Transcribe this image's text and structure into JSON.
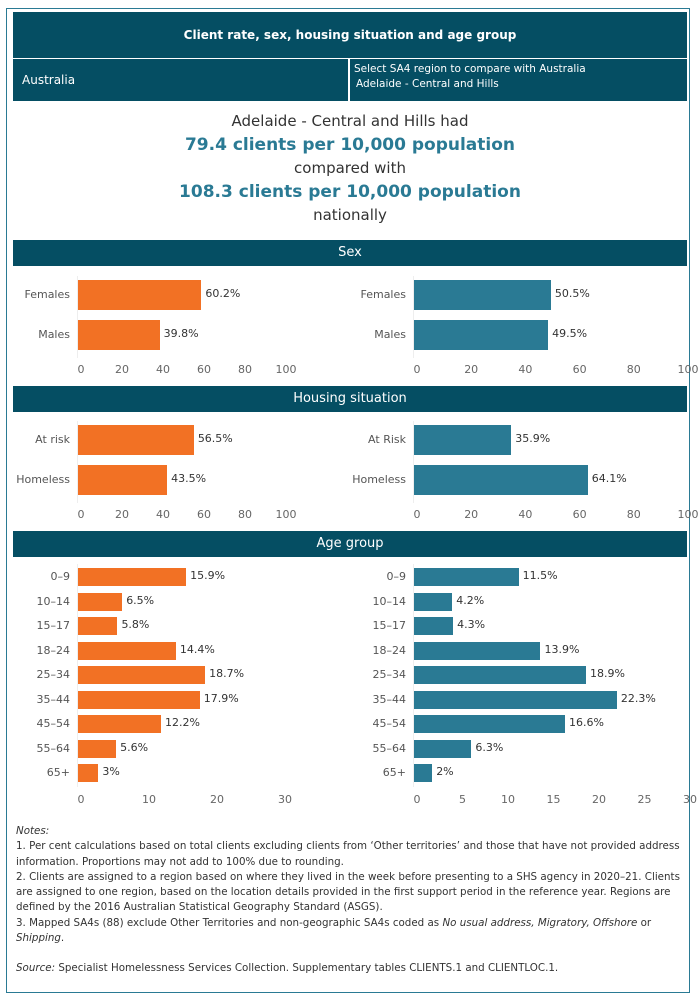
{
  "header": {
    "title": "Client rate, sex, housing situation and age group",
    "left_label": "Australia",
    "selector_label": "Select SA4 region to compare with Australia",
    "selected_region": "Adelaide - Central and Hills"
  },
  "summary": {
    "line1": "Adelaide - Central and Hills had",
    "line2": "79.4 clients per 10,000 population",
    "line3": "compared with",
    "line4": "108.3 clients per 10,000 population",
    "line5": "nationally"
  },
  "sections": {
    "sex": "Sex",
    "housing": "Housing situation",
    "age": "Age group"
  },
  "colors": {
    "region": "#f27124",
    "australia": "#2a7a94",
    "header": "#054e63"
  },
  "chart_data": [
    {
      "id": "sex-region",
      "type": "bar",
      "orientation": "horizontal",
      "categories": [
        "Females",
        "Males"
      ],
      "values": [
        60.2,
        39.8
      ],
      "labels": [
        "60.2%",
        "39.8%"
      ],
      "xlim": [
        0,
        100
      ],
      "ticks": [
        0,
        20,
        40,
        60,
        80,
        100
      ],
      "color": "#f27124"
    },
    {
      "id": "sex-australia",
      "type": "bar",
      "orientation": "horizontal",
      "categories": [
        "Females",
        "Males"
      ],
      "values": [
        50.5,
        49.5
      ],
      "labels": [
        "50.5%",
        "49.5%"
      ],
      "xlim": [
        0,
        100
      ],
      "ticks": [
        0,
        20,
        40,
        60,
        80,
        100
      ],
      "color": "#2a7a94"
    },
    {
      "id": "housing-region",
      "type": "bar",
      "orientation": "horizontal",
      "categories": [
        "At risk",
        "Homeless"
      ],
      "values": [
        56.5,
        43.5
      ],
      "labels": [
        "56.5%",
        "43.5%"
      ],
      "xlim": [
        0,
        100
      ],
      "ticks": [
        0,
        20,
        40,
        60,
        80,
        100
      ],
      "color": "#f27124"
    },
    {
      "id": "housing-australia",
      "type": "bar",
      "orientation": "horizontal",
      "categories": [
        "At Risk",
        "Homeless"
      ],
      "values": [
        35.9,
        64.1
      ],
      "labels": [
        "35.9%",
        "64.1%"
      ],
      "xlim": [
        0,
        100
      ],
      "ticks": [
        0,
        20,
        40,
        60,
        80,
        100
      ],
      "color": "#2a7a94"
    },
    {
      "id": "age-region",
      "type": "bar",
      "orientation": "horizontal",
      "categories": [
        "0–9",
        "10–14",
        "15–17",
        "18–24",
        "25–34",
        "35–44",
        "45–54",
        "55–64",
        "65+"
      ],
      "values": [
        15.9,
        6.5,
        5.8,
        14.4,
        18.7,
        17.9,
        12.2,
        5.6,
        3
      ],
      "labels": [
        "15.9%",
        "6.5%",
        "5.8%",
        "14.4%",
        "18.7%",
        "17.9%",
        "12.2%",
        "5.6%",
        "3%"
      ],
      "xlim": [
        0,
        30
      ],
      "ticks": [
        0,
        10,
        20,
        30
      ],
      "color": "#f27124"
    },
    {
      "id": "age-australia",
      "type": "bar",
      "orientation": "horizontal",
      "categories": [
        "0–9",
        "10–14",
        "15–17",
        "18–24",
        "25–34",
        "35–44",
        "45–54",
        "55–64",
        "65+"
      ],
      "values": [
        11.5,
        4.2,
        4.3,
        13.9,
        18.9,
        22.3,
        16.6,
        6.3,
        2
      ],
      "labels": [
        "11.5%",
        "4.2%",
        "4.3%",
        "13.9%",
        "18.9%",
        "22.3%",
        "16.6%",
        "6.3%",
        "2%"
      ],
      "xlim": [
        0,
        30
      ],
      "ticks": [
        0,
        5,
        10,
        15,
        20,
        25,
        30
      ],
      "color": "#2a7a94"
    }
  ],
  "notes": {
    "heading": "Notes:",
    "n1": "1. Per cent calculations based on total clients excluding clients from ‘Other territories’ and those that have not provided address information. Proportions may not add to 100% due to rounding.",
    "n2": "2. Clients are assigned to a region based on where they lived in the week before presenting to a SHS agency in 2020–21. Clients are assigned to one region, based on the location details provided in the first support period in the reference year. Regions are defined by the 2016 Australian Statistical Geography Standard (ASGS).",
    "n3_prefix": "3.  Mapped SA4s (88) exclude Other Territories and non-geographic SA4s coded as ",
    "n3_italic1": "No usual address, Migratory, Offshore",
    "n3_or": " or ",
    "n3_italic2": "Shipping",
    "n3_end": ".",
    "source_label": "Source:",
    "source_text": " Specialist Homelessness Services Collection. Supplementary tables CLIENTS.1 and CLIENTLOC.1."
  }
}
